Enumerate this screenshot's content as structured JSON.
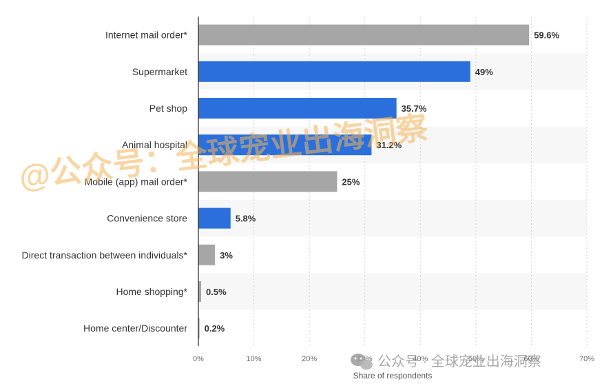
{
  "chart_data": {
    "type": "bar",
    "orientation": "horizontal",
    "categories": [
      "Internet mail order*",
      "Supermarket",
      "Pet shop",
      "Animal hospital",
      "Mobile (app) mail order*",
      "Convenience store",
      "Direct transaction between individuals*",
      "Home shopping*",
      "Home center/Discounter"
    ],
    "values": [
      59.6,
      49,
      35.7,
      31.2,
      25,
      5.8,
      3,
      0.5,
      0.2
    ],
    "value_labels": [
      "59.6%",
      "49%",
      "35.7%",
      "31.2%",
      "25%",
      "5.8%",
      "3%",
      "0.5%",
      "0.2%"
    ],
    "bar_colors": [
      "#a6a6a6",
      "#2a6fdc",
      "#2a6fdc",
      "#2a6fdc",
      "#a6a6a6",
      "#2a6fdc",
      "#a6a6a6",
      "#a6a6a6",
      "#a6a6a6"
    ],
    "xlim": [
      0,
      70
    ],
    "xticks": [
      0,
      10,
      20,
      30,
      40,
      50,
      60,
      70
    ],
    "xtick_labels": [
      "0%",
      "10%",
      "20%",
      "30%",
      "40%",
      "50%",
      "60%",
      "70%"
    ],
    "xlabel": "Share of respondents",
    "grid": true,
    "stripe_color": "#f7f7f7"
  },
  "watermark": {
    "main": "@公众号：全球宠业出海洞察",
    "footer": "公众号 · 全球宠业出海洞察",
    "footer_icon": "wechat-icon"
  }
}
